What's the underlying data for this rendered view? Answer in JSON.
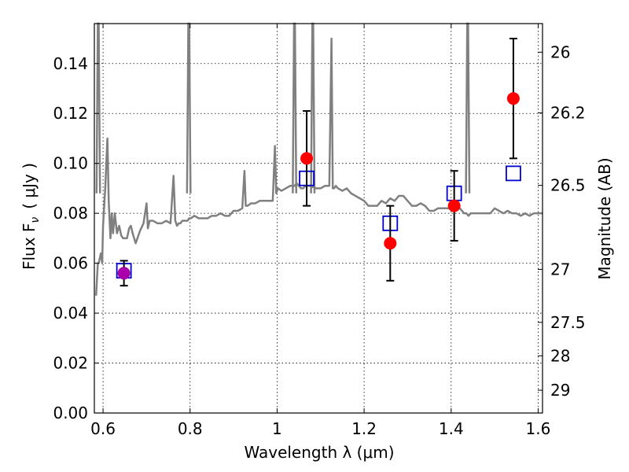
{
  "chart_data": {
    "type": "scatter",
    "xlabel": "Wavelength  λ (μm)",
    "ylabel": "Flux  F",
    "ylabel_sub": "ν",
    "ylabel_unit": "( μJy )",
    "y2label": "Magnitude (AB)",
    "xlim": [
      0.58,
      1.61
    ],
    "ylim": [
      0.0,
      0.156
    ],
    "grid": true,
    "x_ticks": [
      0.6,
      0.8,
      1.0,
      1.2,
      1.4,
      1.6
    ],
    "x_tick_labels": [
      "0.6",
      "0.8",
      "1",
      "1.2",
      "1.4",
      "1.6"
    ],
    "y_ticks": [
      0.0,
      0.02,
      0.04,
      0.06,
      0.08,
      0.1,
      0.12,
      0.14
    ],
    "y_tick_labels": [
      "0.00",
      "0.02",
      "0.04",
      "0.06",
      "0.08",
      "0.10",
      "0.12",
      "0.14"
    ],
    "mag_ticks": [
      26,
      26.2,
      26.5,
      27,
      27.5,
      28,
      29
    ],
    "mag_tick_labels": [
      "26",
      "26.2",
      "26.5",
      "27",
      "27.5",
      "28",
      "29"
    ],
    "colors": {
      "spectrum": "#808080",
      "observed": "#ff0000",
      "model": "#0000cc",
      "special": "#aa00aa",
      "errorbar": "#000000",
      "grid": "#000000"
    },
    "series": [
      {
        "kind": "spectrum",
        "x": [
          0.584,
          0.588,
          0.59,
          0.595,
          0.598,
          0.6,
          0.605,
          0.61,
          0.613,
          0.617,
          0.62,
          0.623,
          0.627,
          0.632,
          0.637,
          0.642,
          0.646,
          0.65,
          0.655,
          0.66,
          0.664,
          0.668,
          0.675,
          0.685,
          0.693,
          0.7,
          0.703,
          0.707,
          0.715,
          0.725,
          0.735,
          0.745,
          0.755,
          0.762,
          0.766,
          0.77,
          0.774,
          0.778,
          0.782,
          0.786,
          0.79,
          0.794,
          0.798,
          0.802,
          0.81,
          0.82,
          0.83,
          0.84,
          0.85,
          0.86,
          0.87,
          0.88,
          0.89,
          0.9,
          0.91,
          0.92,
          0.925,
          0.928,
          0.932,
          0.94,
          0.95,
          0.96,
          0.97,
          0.98,
          0.99,
          0.995,
          0.998,
          1.002,
          1.01,
          1.02,
          1.03,
          1.04,
          1.045,
          1.05,
          1.055,
          1.06,
          1.065,
          1.075,
          1.09,
          1.1,
          1.11,
          1.12,
          1.125,
          1.128,
          1.131,
          1.135,
          1.14,
          1.15,
          1.16,
          1.17,
          1.18,
          1.19,
          1.2,
          1.21,
          1.22,
          1.23,
          1.24,
          1.25,
          1.26,
          1.27,
          1.28,
          1.29,
          1.3,
          1.31,
          1.32,
          1.33,
          1.34,
          1.35,
          1.36,
          1.37,
          1.38,
          1.39,
          1.4,
          1.41,
          1.42,
          1.43,
          1.435,
          1.44,
          1.445,
          1.45,
          1.455,
          1.46,
          1.47,
          1.48,
          1.49,
          1.5,
          1.51,
          1.52,
          1.53,
          1.54,
          1.55,
          1.56,
          1.57,
          1.58,
          1.59,
          1.6,
          1.61
        ],
        "y": [
          0.047,
          0.06,
          0.06,
          0.064,
          0.06,
          0.075,
          0.09,
          0.11,
          0.085,
          0.07,
          0.08,
          0.072,
          0.08,
          0.072,
          0.075,
          0.071,
          0.07,
          0.07,
          0.07,
          0.074,
          0.075,
          0.072,
          0.068,
          0.073,
          0.076,
          0.084,
          0.074,
          0.077,
          0.077,
          0.076,
          0.076,
          0.077,
          0.076,
          0.095,
          0.077,
          0.075,
          0.076,
          0.076,
          0.077,
          0.077,
          0.077,
          0.077,
          0.078,
          0.078,
          0.079,
          0.078,
          0.078,
          0.078,
          0.079,
          0.079,
          0.08,
          0.079,
          0.079,
          0.081,
          0.081,
          0.082,
          0.097,
          0.083,
          0.083,
          0.084,
          0.084,
          0.085,
          0.085,
          0.085,
          0.085,
          0.107,
          0.088,
          0.09,
          0.089,
          0.09,
          0.091,
          0.091,
          0.092,
          0.091,
          0.09,
          0.09,
          0.091,
          0.091,
          0.09,
          0.09,
          0.091,
          0.091,
          0.15,
          0.09,
          0.09,
          0.091,
          0.09,
          0.089,
          0.09,
          0.088,
          0.087,
          0.086,
          0.085,
          0.083,
          0.083,
          0.083,
          0.085,
          0.084,
          0.086,
          0.085,
          0.087,
          0.087,
          0.085,
          0.083,
          0.083,
          0.084,
          0.083,
          0.081,
          0.081,
          0.082,
          0.082,
          0.082,
          0.082,
          0.084,
          0.082,
          0.08,
          0.08,
          0.079,
          0.08,
          0.08,
          0.08,
          0.08,
          0.08,
          0.08,
          0.08,
          0.082,
          0.081,
          0.08,
          0.081,
          0.08,
          0.08,
          0.079,
          0.08,
          0.079,
          0.08,
          0.08,
          0.08
        ]
      },
      {
        "kind": "spike",
        "x": [
          0.589,
          0.797,
          1.04,
          1.082,
          1.438
        ],
        "heights": [
          0.156,
          0.156,
          0.156,
          0.156,
          0.156
        ]
      },
      {
        "kind": "observed",
        "x": [
          0.648,
          1.068,
          1.26,
          1.407,
          1.543
        ],
        "y": [
          0.056,
          0.102,
          0.068,
          0.083,
          0.126
        ],
        "yerr": [
          [
            0.005,
            0.005
          ],
          [
            0.019,
            0.019
          ],
          [
            0.015,
            0.015
          ],
          [
            0.014,
            0.014
          ],
          [
            0.024,
            0.024
          ]
        ],
        "special_index": 0
      },
      {
        "kind": "model",
        "x": [
          0.648,
          1.068,
          1.26,
          1.407,
          1.543
        ],
        "y": [
          0.057,
          0.094,
          0.076,
          0.088,
          0.096
        ]
      }
    ]
  }
}
